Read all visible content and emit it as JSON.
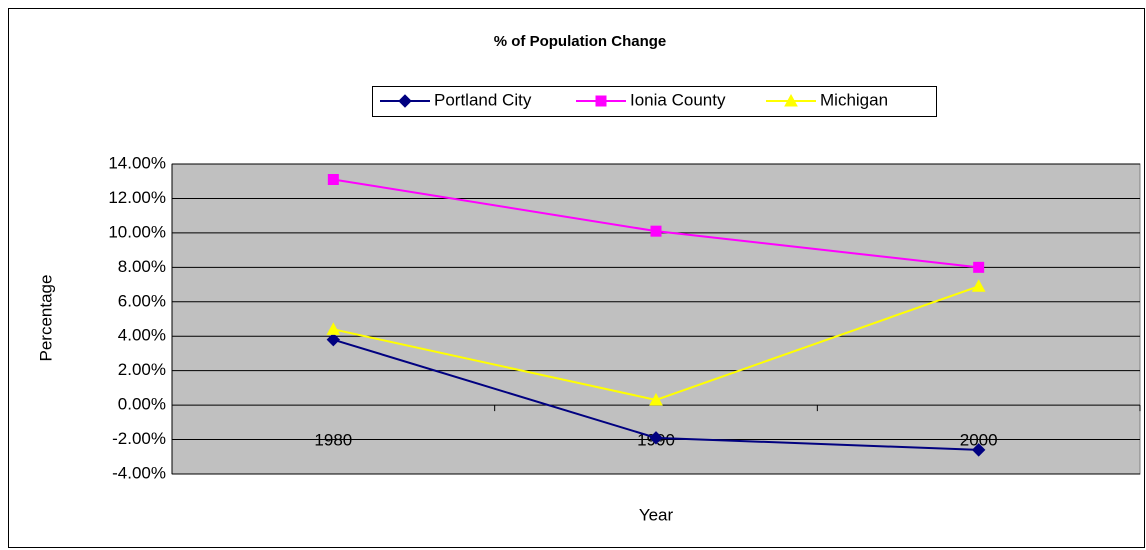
{
  "chart_data": {
    "type": "line",
    "title": "% of Population Change",
    "x_label": "Year",
    "y_label": "Percentage",
    "categories": [
      "1980",
      "1990",
      "2000"
    ],
    "series": [
      {
        "name": "Portland City",
        "color": "#000080",
        "marker": "diamond",
        "values": [
          3.8,
          -1.9,
          -2.6
        ]
      },
      {
        "name": "Ionia County",
        "color": "#ff00ff",
        "marker": "square",
        "values": [
          13.1,
          10.1,
          8.0
        ]
      },
      {
        "name": "Michigan",
        "color": "#ffff00",
        "marker": "triangle",
        "values": [
          4.4,
          0.3,
          6.9
        ]
      }
    ],
    "ylim": [
      -4,
      14
    ],
    "yticks": [
      {
        "value": -4,
        "label": "-4.00%"
      },
      {
        "value": -2,
        "label": "-2.00%"
      },
      {
        "value": 0,
        "label": "0.00%"
      },
      {
        "value": 2,
        "label": "2.00%"
      },
      {
        "value": 4,
        "label": "4.00%"
      },
      {
        "value": 6,
        "label": "6.00%"
      },
      {
        "value": 8,
        "label": "8.00%"
      },
      {
        "value": 10,
        "label": "10.00%"
      },
      {
        "value": 12,
        "label": "12.00%"
      },
      {
        "value": 14,
        "label": "14.00%"
      }
    ],
    "grid": true,
    "legend": "top",
    "plot_background": "#c0c0c0"
  }
}
